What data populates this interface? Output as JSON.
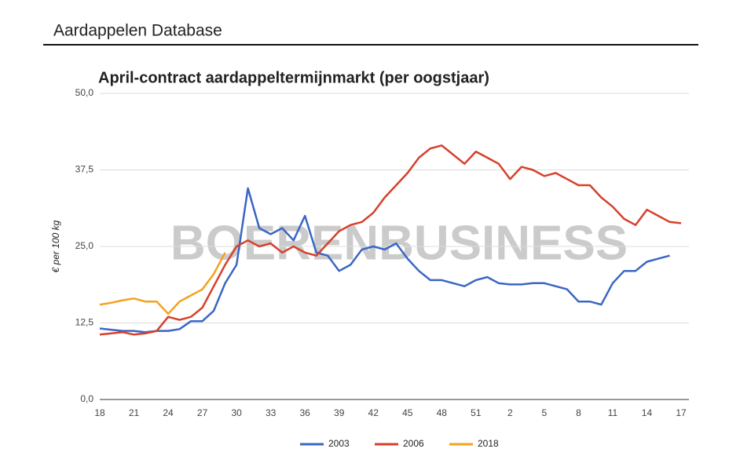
{
  "header": {
    "title": "Aardappelen Database"
  },
  "chart_data": {
    "type": "line",
    "title": "April-contract aardappeltermijnmarkt (per oogstjaar)",
    "y_label": "€ per 100 kg",
    "watermark": "BOERENBUSINESS",
    "categories": [
      "18",
      null,
      null,
      "21",
      null,
      null,
      "24",
      null,
      null,
      "27",
      null,
      null,
      "30",
      null,
      null,
      "33",
      null,
      null,
      "36",
      null,
      null,
      "39",
      null,
      null,
      "42",
      null,
      null,
      "45",
      null,
      null,
      "48",
      null,
      null,
      "51",
      null,
      null,
      "2",
      null,
      null,
      "5",
      null,
      null,
      "8",
      null,
      null,
      "11",
      null,
      null,
      "14",
      null,
      null,
      "17"
    ],
    "ylim": [
      0,
      50
    ],
    "yticks": [
      {
        "value": 0,
        "label": "0,0"
      },
      {
        "value": 12.5,
        "label": "12,5"
      },
      {
        "value": 25,
        "label": "25,0"
      },
      {
        "value": 37.5,
        "label": "37,5"
      },
      {
        "value": 50,
        "label": "50,0"
      }
    ],
    "grid": true,
    "legend": "bottom",
    "series": [
      {
        "name": "2003",
        "color": "#3a66c4",
        "values": [
          11.6,
          11.4,
          11.2,
          11.2,
          11.0,
          11.2,
          11.2,
          11.5,
          12.8,
          12.8,
          14.5,
          19,
          22,
          34.5,
          28,
          27,
          28,
          26,
          30,
          24,
          23.5,
          21,
          22,
          24.5,
          25,
          24.5,
          25.5,
          23,
          21,
          19.5,
          19.5,
          19,
          18.5,
          19.5,
          20,
          19,
          18.8,
          18.8,
          19,
          19,
          18.5,
          18,
          16,
          16,
          15.5,
          19,
          21,
          21,
          22.5,
          23,
          23.5,
          null
        ]
      },
      {
        "name": "2006",
        "color": "#d6402b",
        "values": [
          10.6,
          10.8,
          11,
          10.6,
          10.8,
          11.2,
          13.5,
          13,
          13.5,
          15,
          18.5,
          22,
          25,
          26,
          25,
          25.5,
          24,
          25,
          24,
          23.5,
          25.5,
          27.5,
          28.5,
          29,
          30.5,
          33,
          35,
          37,
          39.5,
          41,
          41.5,
          40,
          38.5,
          40.5,
          39.5,
          38.5,
          36,
          38,
          37.5,
          36.5,
          37,
          36,
          35,
          35,
          33,
          31.5,
          29.5,
          28.5,
          31,
          30,
          29,
          28.8
        ]
      },
      {
        "name": "2018",
        "color": "#f4a11d",
        "values": [
          15.5,
          15.8,
          16.2,
          16.5,
          16,
          16,
          14,
          16,
          17,
          18,
          20.5,
          24,
          null,
          null,
          null,
          null,
          null,
          null,
          null,
          null,
          null,
          null,
          null,
          null,
          null,
          null,
          null,
          null,
          null,
          null,
          null,
          null,
          null,
          null,
          null,
          null,
          null,
          null,
          null,
          null,
          null,
          null,
          null,
          null,
          null,
          null,
          null,
          null,
          null,
          null,
          null,
          null
        ]
      }
    ]
  }
}
